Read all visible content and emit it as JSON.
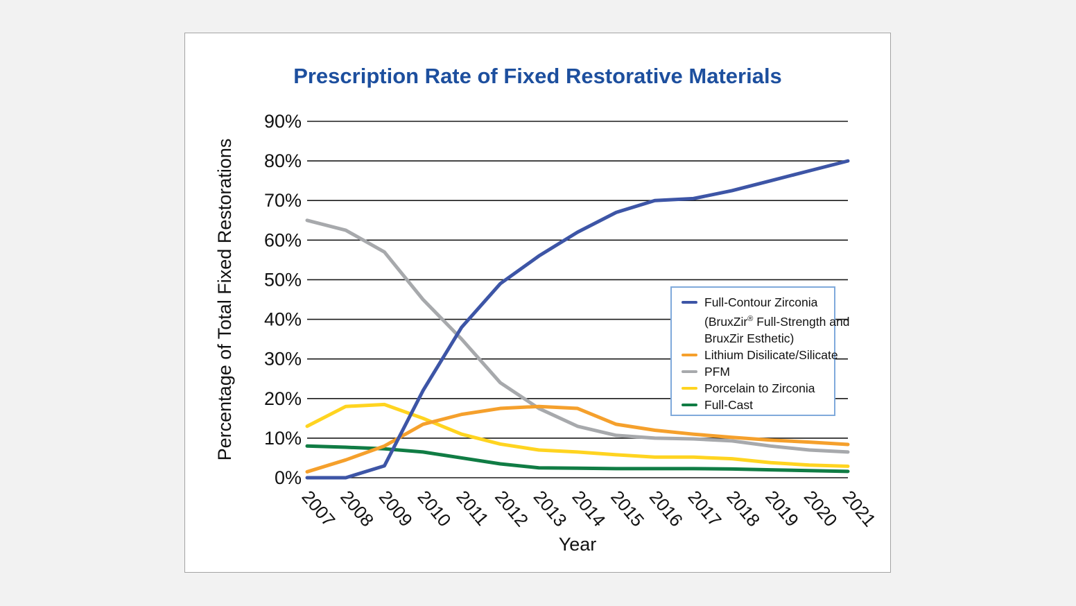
{
  "page": {
    "background_color": "#f2f2f2",
    "panel_background": "#ffffff",
    "panel_border_color": "#a3a3a3",
    "title_color": "#1d4f9e",
    "legend_border_color": "#7fa9db",
    "gridline_color": "#1a1a1a"
  },
  "chart_data": {
    "type": "line",
    "title": "Prescription Rate of Fixed Restorative Materials",
    "xlabel": "Year",
    "ylabel": "Percentage of Total Fixed Restorations",
    "x": [
      "2007",
      "2008",
      "2009",
      "2010",
      "2011",
      "2012",
      "2013",
      "2014",
      "2015",
      "2016",
      "2017",
      "2018",
      "2019",
      "2020",
      "2021"
    ],
    "ylim": [
      0,
      90
    ],
    "ytick_step": 10,
    "ytick_labels": [
      "0%",
      "10%",
      "20%",
      "30%",
      "40%",
      "50%",
      "60%",
      "70%",
      "80%",
      "90%"
    ],
    "grid": "horizontal-only",
    "legend_position": "inside-right-middle",
    "x_tick_label_rotation_deg": 50,
    "series": [
      {
        "name": "Full-Contour Zirconia (BruxZir® Full-Strength and BruxZir Esthetic)",
        "legend_lines": [
          "Full-Contour Zirconia",
          "(BruxZir® Full-Strength and",
          "BruxZir Esthetic)"
        ],
        "color": "#3d55a6",
        "values": [
          0,
          0,
          3,
          22,
          38,
          49,
          56,
          62,
          67,
          70,
          70.5,
          72.5,
          75,
          77.5,
          80
        ]
      },
      {
        "name": "Lithium Disilicate/Silicate",
        "legend_lines": [
          "Lithium Disilicate/Silicate"
        ],
        "color": "#f5a02c",
        "values": [
          1.5,
          4.5,
          8,
          13.5,
          16,
          17.5,
          18,
          17.5,
          13.5,
          12,
          11,
          10.2,
          9.5,
          9,
          8.4
        ]
      },
      {
        "name": "PFM",
        "legend_lines": [
          "PFM"
        ],
        "color": "#a7a9ac",
        "values": [
          65,
          62.5,
          57,
          45,
          35,
          24,
          17.5,
          13,
          10.7,
          10,
          9.8,
          9.3,
          8,
          7,
          6.5
        ]
      },
      {
        "name": "Porcelain to Zirconia",
        "legend_lines": [
          "Porcelain to Zirconia"
        ],
        "color": "#ffd420",
        "values": [
          13,
          18,
          18.5,
          15,
          11,
          8.5,
          7,
          6.5,
          5.8,
          5.2,
          5.2,
          4.8,
          3.8,
          3.2,
          2.9
        ]
      },
      {
        "name": "Full-Cast",
        "legend_lines": [
          "Full-Cast"
        ],
        "color": "#107c44",
        "values": [
          8,
          7.7,
          7.3,
          6.5,
          5,
          3.5,
          2.5,
          2.4,
          2.3,
          2.3,
          2.3,
          2.2,
          2,
          1.8,
          1.6
        ]
      }
    ],
    "draw_order_series_indices": [
      2,
      3,
      4,
      1,
      0
    ]
  }
}
